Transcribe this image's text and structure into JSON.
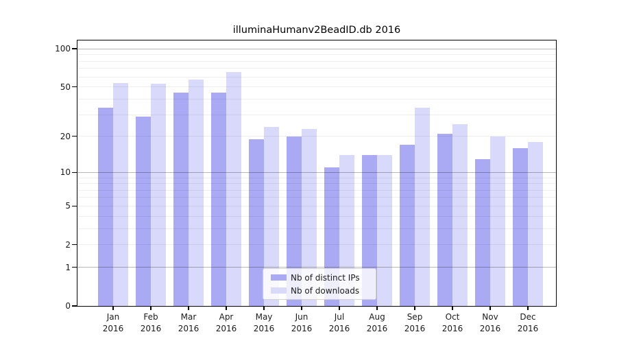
{
  "title": "illuminaHumanv2BeadID.db 2016",
  "chart_data": {
    "type": "bar",
    "title": "illuminaHumanv2BeadID.db 2016",
    "categories": [
      "Jan",
      "Feb",
      "Mar",
      "Apr",
      "May",
      "Jun",
      "Jul",
      "Aug",
      "Sep",
      "Oct",
      "Nov",
      "Dec"
    ],
    "year_label": "2016",
    "series": [
      {
        "name": "Nb of distinct IPs",
        "color": "#a9a9f4",
        "values": [
          34,
          29,
          45,
          45,
          19,
          20,
          11,
          14,
          17,
          21,
          13,
          16
        ]
      },
      {
        "name": "Nb of downloads",
        "color": "#d9d9fb",
        "values": [
          54,
          53,
          57,
          66,
          24,
          23,
          14,
          14,
          34,
          25,
          20,
          18
        ]
      }
    ],
    "xlabel": "",
    "ylabel": "",
    "y_axis": {
      "scale": "log1p",
      "tick_labels": [
        0,
        1,
        2,
        5,
        10,
        20,
        50,
        100
      ],
      "major_gridlines": [
        1,
        10,
        100
      ],
      "minor_gridlines": [
        2,
        3,
        4,
        5,
        6,
        7,
        8,
        9,
        20,
        30,
        40,
        50,
        60,
        70,
        80,
        90
      ],
      "ylim": [
        0,
        115
      ],
      "grid": "on"
    },
    "legend": {
      "position": "inside-bottom-center",
      "entries": [
        "Nb of distinct IPs",
        "Nb of downloads"
      ]
    }
  }
}
